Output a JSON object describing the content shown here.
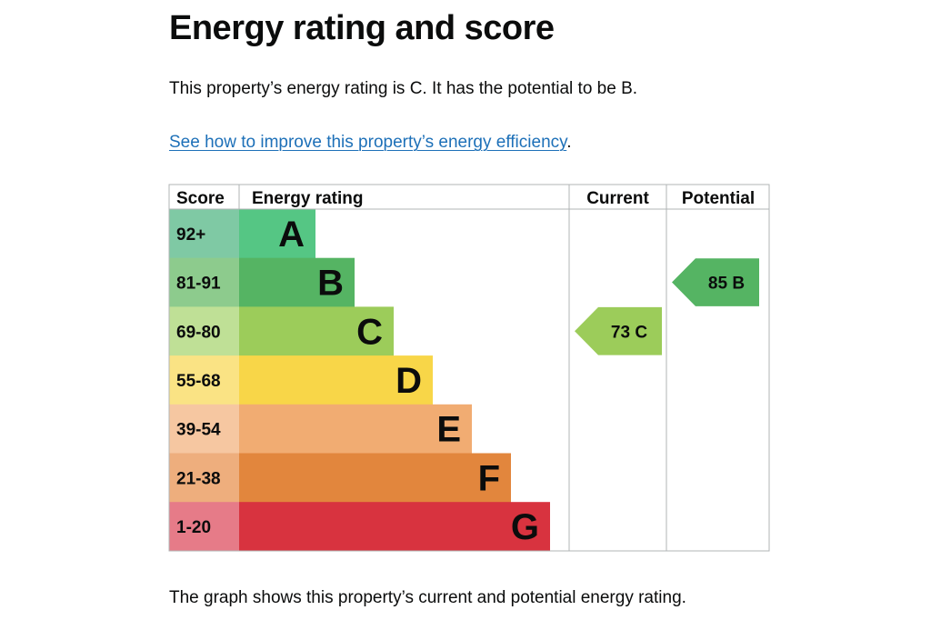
{
  "heading": "Energy rating and score",
  "intro": "This property’s energy rating is C. It has the potential to be B.",
  "link": {
    "text": "See how to improve this property’s energy efficiency",
    "suffix": "."
  },
  "caption": "The graph shows this property’s current and potential energy rating.",
  "chart_data": {
    "type": "bar",
    "headers": {
      "score": "Score",
      "rating": "Energy rating",
      "current": "Current",
      "potential": "Potential"
    },
    "bands": [
      {
        "letter": "A",
        "range": "92+",
        "min": 92,
        "max": 100,
        "color": "#55c684",
        "score_color": "#7fc9a4"
      },
      {
        "letter": "B",
        "range": "81-91",
        "min": 81,
        "max": 91,
        "color": "#55b463",
        "score_color": "#8dcb8d"
      },
      {
        "letter": "C",
        "range": "69-80",
        "min": 69,
        "max": 80,
        "color": "#9ccc5a",
        "score_color": "#bfe096"
      },
      {
        "letter": "D",
        "range": "55-68",
        "min": 55,
        "max": 68,
        "color": "#f8d648",
        "score_color": "#fae384"
      },
      {
        "letter": "E",
        "range": "39-54",
        "min": 39,
        "max": 54,
        "color": "#f1ac72",
        "score_color": "#f6c7a1"
      },
      {
        "letter": "F",
        "range": "21-38",
        "min": 21,
        "max": 38,
        "color": "#e2863d",
        "score_color": "#eeae7d"
      },
      {
        "letter": "G",
        "range": "1-20",
        "min": 1,
        "max": 20,
        "color": "#d8333f",
        "score_color": "#e67b88"
      }
    ],
    "current": {
      "score": 73,
      "letter": "C",
      "label": "73 C"
    },
    "potential": {
      "score": 85,
      "letter": "B",
      "label": "85 B"
    }
  }
}
